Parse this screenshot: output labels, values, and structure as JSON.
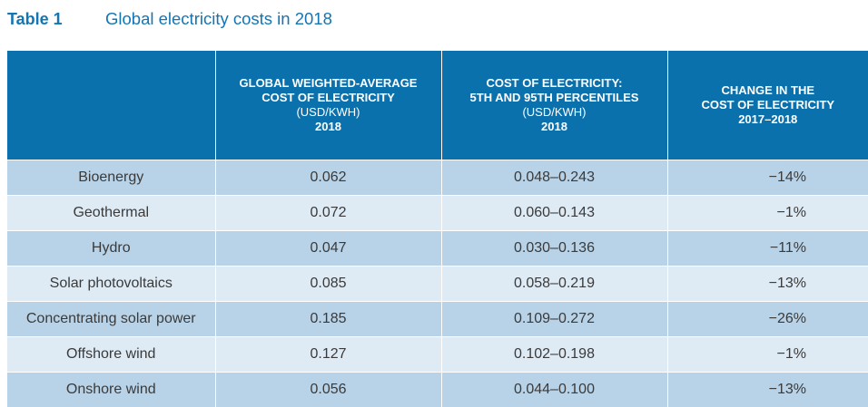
{
  "caption": {
    "label": "Table 1",
    "title": "Global electricity costs in 2018"
  },
  "header": {
    "col1": "",
    "col2": {
      "line1": "GLOBAL WEIGHTED-AVERAGE",
      "line2": "COST OF ELECTRICITY",
      "line3": "(USD/KWH)",
      "line4": "2018"
    },
    "col3": {
      "line1": "COST OF ELECTRICITY:",
      "line2": "5TH AND 95TH PERCENTILES",
      "line3": "(USD/KWH)",
      "line4": "2018"
    },
    "col4": {
      "line1": "CHANGE IN THE",
      "line2": "COST OF ELECTRICITY",
      "line3": "2017–2018"
    }
  },
  "rows": [
    {
      "technology": "Bioenergy",
      "average": "0.062",
      "range": "0.048–0.243",
      "change": "−14%"
    },
    {
      "technology": "Geothermal",
      "average": "0.072",
      "range": "0.060–0.143",
      "change": "−1%"
    },
    {
      "technology": "Hydro",
      "average": "0.047",
      "range": "0.030–0.136",
      "change": "−11%"
    },
    {
      "technology": "Solar photovoltaics",
      "average": "0.085",
      "range": "0.058–0.219",
      "change": "−13%"
    },
    {
      "technology": "Concentrating solar power",
      "average": "0.185",
      "range": "0.109–0.272",
      "change": "−26%"
    },
    {
      "technology": "Offshore wind",
      "average": "0.127",
      "range": "0.102–0.198",
      "change": "−1%"
    },
    {
      "technology": "Onshore wind",
      "average": "0.056",
      "range": "0.044–0.100",
      "change": "−13%"
    }
  ],
  "colors": {
    "header_bg": "#0b71ad",
    "caption": "#1475b3",
    "row_dark": "#b8d3e8",
    "row_light": "#deebf5"
  }
}
